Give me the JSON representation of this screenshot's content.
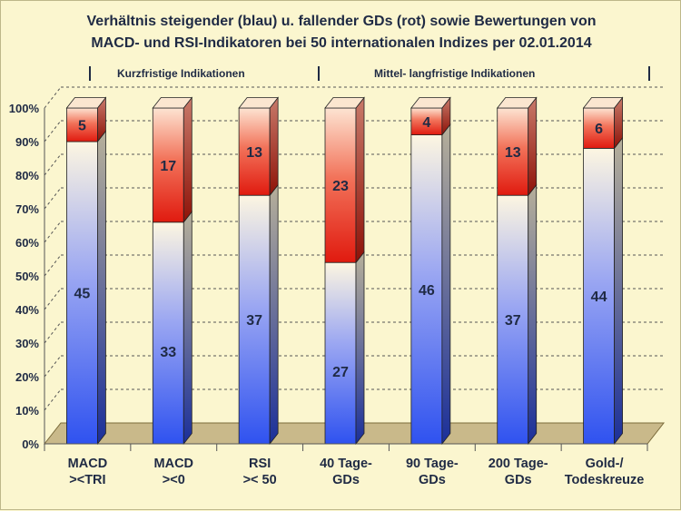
{
  "title_line1": "Verhältnis steigender (blau) u. fallender GDs (rot) sowie Bewertungen von",
  "title_line2": "MACD- und RSI-Indikatoren bei 50 internationalen Indizes per 02.01.2014",
  "group_labels": {
    "short_term": "Kurzfristige Indikationen",
    "mid_long_term": "Mittel- langfristige Indikationen"
  },
  "colors": {
    "rising": "#3355ee",
    "falling": "#e51c10",
    "background": "#fbf6cf",
    "floor": "#c9b98a",
    "grid": "#555555",
    "text": "#1f2a44"
  },
  "chart_data": {
    "type": "bar",
    "stacked": true,
    "percent_scale": true,
    "categories": [
      [
        "MACD",
        "><TRI"
      ],
      [
        "MACD",
        "><0"
      ],
      [
        "RSI",
        ">< 50"
      ],
      [
        "40 Tage-",
        "GDs"
      ],
      [
        "90 Tage-",
        "GDs"
      ],
      [
        "200 Tage-",
        "GDs"
      ],
      [
        "Gold-/",
        "Todeskreuze"
      ]
    ],
    "series": [
      {
        "values": [
          45,
          33,
          37,
          27,
          46,
          37,
          44
        ]
      },
      {
        "values": [
          5,
          17,
          13,
          23,
          4,
          13,
          6
        ]
      }
    ],
    "yticks": [
      "0%",
      "10%",
      "20%",
      "30%",
      "40%",
      "50%",
      "60%",
      "70%",
      "80%",
      "90%",
      "100%"
    ],
    "ylim": [
      0,
      100
    ],
    "grid": true
  }
}
